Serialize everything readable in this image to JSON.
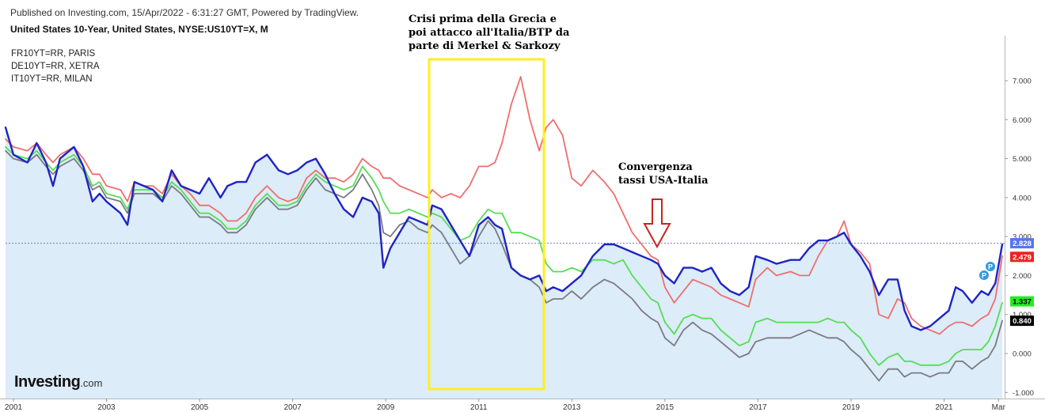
{
  "header": {
    "published": "Published on Investing.com, 15/Apr/2022 - 6:31:27 GMT, Powered by TradingView.",
    "subtitle": "United States 10-Year, United States, NYSE:US10YT=X, M"
  },
  "legend": [
    "FR10YT=RR, PARIS",
    "DE10YT=RR, XETRA",
    "IT10YT=RR, MILAN"
  ],
  "annotations": {
    "crisis": [
      "Crisi prima della Grecia e",
      "poi attacco all'Italia/BTP da",
      "parte di Merkel & Sarkozy"
    ],
    "convergence": [
      "Convergenza",
      "tassi USA-Italia"
    ]
  },
  "logo": {
    "main": "Investing",
    "suffix": ".com"
  },
  "colors": {
    "us": "#1f24c4",
    "it": "#ef6e6e",
    "de": "#7a7a82",
    "fr": "#55dd55",
    "area_fill": "#dcecf8",
    "box": "#ffee20",
    "arrow": "#cc2222"
  },
  "chart_data": {
    "type": "line",
    "x_range": [
      2000.83,
      2022.25
    ],
    "ylim": [
      -1.2,
      8.1
    ],
    "x_ticks": [
      "2001",
      "2003",
      "2005",
      "2007",
      "2009",
      "2011",
      "2013",
      "2015",
      "2017",
      "2019",
      "2021",
      "Mar"
    ],
    "y_ticks": [
      "-1.000",
      "0.000",
      "1.000",
      "2.000",
      "3.000",
      "4.000",
      "5.000",
      "6.000",
      "7.000"
    ],
    "price_line": 2.828,
    "last_values": [
      {
        "series": "US",
        "label": "2.828",
        "value": 2.828
      },
      {
        "series": "IT",
        "label": "2.479",
        "value": 2.479
      },
      {
        "series": "FR",
        "label": "1.337",
        "value": 1.337
      },
      {
        "series": "DE",
        "label": "0.840",
        "value": 0.84
      }
    ],
    "series": [
      {
        "name": "United States 10-Year",
        "key": "US",
        "x": [
          2000.83,
          2001.0,
          2001.3,
          2001.5,
          2001.7,
          2001.85,
          2002.0,
          2002.3,
          2002.5,
          2002.7,
          2002.85,
          2003.0,
          2003.3,
          2003.45,
          2003.6,
          2003.8,
          2004.0,
          2004.2,
          2004.4,
          2004.6,
          2004.8,
          2005.0,
          2005.2,
          2005.45,
          2005.6,
          2005.8,
          2006.0,
          2006.2,
          2006.45,
          2006.7,
          2006.9,
          2007.1,
          2007.3,
          2007.5,
          2007.7,
          2007.9,
          2008.1,
          2008.3,
          2008.5,
          2008.7,
          2008.85,
          2008.95,
          2009.1,
          2009.3,
          2009.5,
          2009.7,
          2009.9,
          2010.0,
          2010.2,
          2010.4,
          2010.6,
          2010.8,
          2011.0,
          2011.2,
          2011.35,
          2011.5,
          2011.7,
          2011.9,
          2012.1,
          2012.3,
          2012.45,
          2012.6,
          2012.8,
          2013.0,
          2013.2,
          2013.45,
          2013.7,
          2013.9,
          2014.1,
          2014.3,
          2014.5,
          2014.7,
          2014.85,
          2015.0,
          2015.2,
          2015.4,
          2015.6,
          2015.8,
          2016.0,
          2016.2,
          2016.4,
          2016.6,
          2016.8,
          2016.95,
          2017.2,
          2017.4,
          2017.7,
          2017.9,
          2018.1,
          2018.3,
          2018.5,
          2018.7,
          2018.85,
          2019.0,
          2019.2,
          2019.4,
          2019.6,
          2019.8,
          2020.0,
          2020.15,
          2020.3,
          2020.5,
          2020.7,
          2020.9,
          2021.1,
          2021.25,
          2021.4,
          2021.6,
          2021.8,
          2021.95,
          2022.1,
          2022.25
        ],
        "values": [
          5.8,
          5.1,
          4.9,
          5.4,
          4.9,
          4.3,
          5.0,
          5.3,
          4.8,
          3.9,
          4.1,
          3.9,
          3.6,
          3.3,
          4.4,
          4.3,
          4.2,
          3.9,
          4.7,
          4.3,
          4.2,
          4.1,
          4.5,
          4.0,
          4.3,
          4.4,
          4.4,
          4.9,
          5.1,
          4.7,
          4.6,
          4.7,
          4.9,
          5.0,
          4.6,
          4.1,
          3.7,
          3.5,
          4.0,
          3.9,
          3.6,
          2.2,
          2.7,
          3.1,
          3.5,
          3.4,
          3.3,
          3.8,
          3.7,
          3.3,
          2.9,
          2.5,
          3.3,
          3.5,
          3.3,
          3.2,
          2.2,
          2.0,
          1.9,
          2.0,
          1.6,
          1.7,
          1.6,
          1.8,
          2.0,
          2.5,
          2.8,
          2.8,
          2.7,
          2.6,
          2.5,
          2.4,
          2.3,
          2.0,
          1.8,
          2.2,
          2.2,
          2.1,
          2.2,
          1.8,
          1.6,
          1.5,
          1.7,
          2.5,
          2.4,
          2.3,
          2.4,
          2.4,
          2.7,
          2.9,
          2.9,
          3.0,
          3.1,
          2.8,
          2.5,
          2.1,
          1.5,
          1.9,
          1.9,
          1.1,
          0.7,
          0.6,
          0.7,
          0.9,
          1.1,
          1.7,
          1.6,
          1.3,
          1.6,
          1.5,
          1.8,
          2.8
        ]
      },
      {
        "name": "IT10YT=RR, MILAN",
        "key": "IT",
        "x": [
          2000.83,
          2001.0,
          2001.3,
          2001.5,
          2001.7,
          2001.85,
          2002.0,
          2002.3,
          2002.5,
          2002.7,
          2002.85,
          2003.0,
          2003.3,
          2003.45,
          2003.6,
          2003.8,
          2004.0,
          2004.2,
          2004.4,
          2004.6,
          2004.8,
          2005.0,
          2005.2,
          2005.45,
          2005.6,
          2005.8,
          2006.0,
          2006.2,
          2006.45,
          2006.7,
          2006.9,
          2007.1,
          2007.3,
          2007.5,
          2007.7,
          2007.9,
          2008.1,
          2008.3,
          2008.5,
          2008.7,
          2008.85,
          2008.95,
          2009.1,
          2009.3,
          2009.5,
          2009.7,
          2009.9,
          2010.0,
          2010.2,
          2010.4,
          2010.6,
          2010.8,
          2011.0,
          2011.2,
          2011.35,
          2011.5,
          2011.7,
          2011.9,
          2012.1,
          2012.3,
          2012.45,
          2012.6,
          2012.8,
          2013.0,
          2013.2,
          2013.45,
          2013.7,
          2013.9,
          2014.1,
          2014.3,
          2014.5,
          2014.7,
          2014.85,
          2015.0,
          2015.2,
          2015.4,
          2015.6,
          2015.8,
          2016.0,
          2016.2,
          2016.4,
          2016.6,
          2016.8,
          2016.95,
          2017.2,
          2017.4,
          2017.7,
          2017.9,
          2018.1,
          2018.3,
          2018.5,
          2018.7,
          2018.85,
          2019.0,
          2019.2,
          2019.4,
          2019.6,
          2019.8,
          2020.0,
          2020.15,
          2020.3,
          2020.5,
          2020.7,
          2020.9,
          2021.1,
          2021.25,
          2021.4,
          2021.6,
          2021.8,
          2021.95,
          2022.1,
          2022.25
        ],
        "values": [
          5.5,
          5.3,
          5.2,
          5.4,
          5.1,
          4.9,
          5.1,
          5.3,
          5.0,
          4.6,
          4.6,
          4.3,
          4.2,
          3.9,
          4.4,
          4.3,
          4.3,
          4.1,
          4.6,
          4.3,
          4.1,
          3.8,
          3.8,
          3.6,
          3.4,
          3.4,
          3.6,
          4.0,
          4.3,
          4.0,
          3.9,
          4.0,
          4.5,
          4.7,
          4.5,
          4.5,
          4.4,
          4.6,
          5.0,
          4.8,
          4.7,
          4.5,
          4.5,
          4.3,
          4.2,
          4.1,
          4.0,
          4.2,
          4.0,
          4.1,
          4.0,
          4.3,
          4.8,
          4.8,
          4.9,
          5.4,
          6.4,
          7.1,
          6.0,
          5.2,
          5.8,
          6.0,
          5.6,
          4.5,
          4.3,
          4.7,
          4.4,
          4.1,
          3.6,
          3.1,
          2.8,
          2.5,
          2.4,
          1.7,
          1.3,
          1.6,
          1.9,
          1.8,
          1.7,
          1.5,
          1.4,
          1.3,
          1.2,
          1.9,
          2.2,
          2.0,
          2.1,
          2.0,
          2.0,
          2.5,
          2.9,
          3.0,
          3.4,
          2.8,
          2.6,
          2.3,
          1.0,
          0.9,
          1.4,
          1.3,
          0.9,
          0.7,
          0.6,
          0.5,
          0.7,
          0.8,
          0.8,
          0.7,
          0.9,
          1.0,
          1.4,
          2.5
        ]
      },
      {
        "name": "FR10YT=RR, PARIS",
        "key": "FR",
        "x": [
          2000.83,
          2001.0,
          2001.3,
          2001.5,
          2001.7,
          2001.85,
          2002.0,
          2002.3,
          2002.5,
          2002.7,
          2002.85,
          2003.0,
          2003.3,
          2003.45,
          2003.6,
          2003.8,
          2004.0,
          2004.2,
          2004.4,
          2004.6,
          2004.8,
          2005.0,
          2005.2,
          2005.45,
          2005.6,
          2005.8,
          2006.0,
          2006.2,
          2006.45,
          2006.7,
          2006.9,
          2007.1,
          2007.3,
          2007.5,
          2007.7,
          2007.9,
          2008.1,
          2008.3,
          2008.5,
          2008.7,
          2008.85,
          2008.95,
          2009.1,
          2009.3,
          2009.5,
          2009.7,
          2009.9,
          2010.0,
          2010.2,
          2010.4,
          2010.6,
          2010.8,
          2011.0,
          2011.2,
          2011.35,
          2011.5,
          2011.7,
          2011.9,
          2012.1,
          2012.3,
          2012.45,
          2012.6,
          2012.8,
          2013.0,
          2013.2,
          2013.45,
          2013.7,
          2013.9,
          2014.1,
          2014.3,
          2014.5,
          2014.7,
          2014.85,
          2015.0,
          2015.2,
          2015.4,
          2015.6,
          2015.8,
          2016.0,
          2016.2,
          2016.4,
          2016.6,
          2016.8,
          2016.95,
          2017.2,
          2017.4,
          2017.7,
          2017.9,
          2018.1,
          2018.3,
          2018.5,
          2018.7,
          2018.85,
          2019.0,
          2019.2,
          2019.4,
          2019.6,
          2019.8,
          2020.0,
          2020.15,
          2020.3,
          2020.5,
          2020.7,
          2020.9,
          2021.1,
          2021.25,
          2021.4,
          2021.6,
          2021.8,
          2021.95,
          2022.1,
          2022.25
        ],
        "values": [
          5.3,
          5.1,
          5.0,
          5.2,
          4.9,
          4.7,
          4.9,
          5.1,
          4.8,
          4.3,
          4.4,
          4.1,
          4.0,
          3.7,
          4.2,
          4.2,
          4.2,
          4.0,
          4.4,
          4.2,
          3.9,
          3.6,
          3.6,
          3.4,
          3.2,
          3.2,
          3.4,
          3.8,
          4.1,
          3.8,
          3.8,
          3.9,
          4.3,
          4.6,
          4.4,
          4.3,
          4.2,
          4.3,
          4.8,
          4.5,
          4.2,
          3.9,
          3.6,
          3.6,
          3.7,
          3.6,
          3.5,
          3.6,
          3.5,
          3.2,
          2.9,
          3.0,
          3.4,
          3.7,
          3.6,
          3.6,
          3.1,
          3.1,
          3.0,
          2.9,
          2.3,
          2.1,
          2.1,
          2.2,
          2.1,
          2.4,
          2.4,
          2.3,
          2.4,
          2.0,
          1.7,
          1.4,
          1.3,
          0.8,
          0.5,
          0.9,
          1.0,
          0.9,
          0.9,
          0.6,
          0.4,
          0.2,
          0.3,
          0.8,
          0.9,
          0.8,
          0.8,
          0.8,
          0.8,
          0.8,
          0.9,
          0.8,
          0.8,
          0.6,
          0.4,
          0.0,
          -0.3,
          -0.1,
          0.0,
          -0.2,
          -0.2,
          -0.3,
          -0.3,
          -0.3,
          -0.2,
          0.0,
          0.1,
          0.1,
          0.1,
          0.3,
          0.7,
          1.3
        ]
      },
      {
        "name": "DE10YT=RR, XETRA",
        "key": "DE",
        "x": [
          2000.83,
          2001.0,
          2001.3,
          2001.5,
          2001.7,
          2001.85,
          2002.0,
          2002.3,
          2002.5,
          2002.7,
          2002.85,
          2003.0,
          2003.3,
          2003.45,
          2003.6,
          2003.8,
          2004.0,
          2004.2,
          2004.4,
          2004.6,
          2004.8,
          2005.0,
          2005.2,
          2005.45,
          2005.6,
          2005.8,
          2006.0,
          2006.2,
          2006.45,
          2006.7,
          2006.9,
          2007.1,
          2007.3,
          2007.5,
          2007.7,
          2007.9,
          2008.1,
          2008.3,
          2008.5,
          2008.7,
          2008.85,
          2008.95,
          2009.1,
          2009.3,
          2009.5,
          2009.7,
          2009.9,
          2010.0,
          2010.2,
          2010.4,
          2010.6,
          2010.8,
          2011.0,
          2011.2,
          2011.35,
          2011.5,
          2011.7,
          2011.9,
          2012.1,
          2012.3,
          2012.45,
          2012.6,
          2012.8,
          2013.0,
          2013.2,
          2013.45,
          2013.7,
          2013.9,
          2014.1,
          2014.3,
          2014.5,
          2014.7,
          2014.85,
          2015.0,
          2015.2,
          2015.4,
          2015.6,
          2015.8,
          2016.0,
          2016.2,
          2016.4,
          2016.6,
          2016.8,
          2016.95,
          2017.2,
          2017.4,
          2017.7,
          2017.9,
          2018.1,
          2018.3,
          2018.5,
          2018.7,
          2018.85,
          2019.0,
          2019.2,
          2019.4,
          2019.6,
          2019.8,
          2020.0,
          2020.15,
          2020.3,
          2020.5,
          2020.7,
          2020.9,
          2021.1,
          2021.25,
          2021.4,
          2021.6,
          2021.8,
          2021.95,
          2022.1,
          2022.25
        ],
        "values": [
          5.2,
          5.0,
          4.9,
          5.1,
          4.8,
          4.6,
          4.8,
          5.0,
          4.7,
          4.2,
          4.3,
          4.0,
          3.9,
          3.6,
          4.1,
          4.1,
          4.1,
          3.9,
          4.3,
          4.1,
          3.8,
          3.5,
          3.5,
          3.3,
          3.1,
          3.1,
          3.3,
          3.7,
          4.0,
          3.7,
          3.7,
          3.8,
          4.2,
          4.5,
          4.2,
          4.1,
          4.0,
          4.2,
          4.6,
          4.2,
          3.8,
          3.1,
          3.0,
          3.3,
          3.4,
          3.2,
          3.1,
          3.3,
          3.1,
          2.7,
          2.3,
          2.5,
          3.0,
          3.4,
          3.2,
          2.8,
          2.2,
          2.0,
          1.9,
          1.7,
          1.3,
          1.4,
          1.4,
          1.6,
          1.4,
          1.7,
          1.9,
          1.8,
          1.6,
          1.4,
          1.1,
          0.9,
          0.8,
          0.4,
          0.2,
          0.6,
          0.8,
          0.6,
          0.5,
          0.3,
          0.1,
          -0.1,
          0.0,
          0.3,
          0.4,
          0.4,
          0.4,
          0.5,
          0.6,
          0.5,
          0.4,
          0.4,
          0.3,
          0.1,
          -0.1,
          -0.4,
          -0.7,
          -0.4,
          -0.4,
          -0.6,
          -0.5,
          -0.5,
          -0.6,
          -0.5,
          -0.5,
          -0.2,
          -0.2,
          -0.4,
          -0.2,
          -0.1,
          0.2,
          0.84
        ]
      }
    ]
  }
}
